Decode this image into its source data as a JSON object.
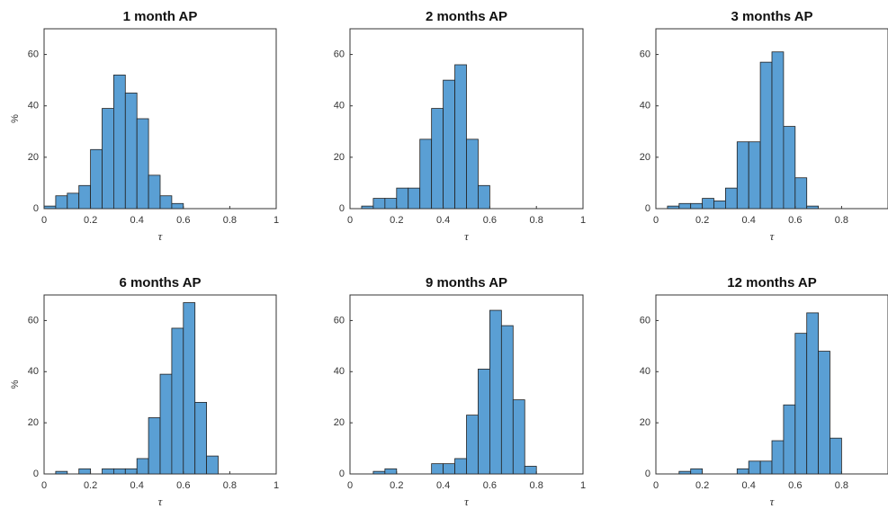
{
  "chart_data": [
    {
      "type": "histogram",
      "title": "1 month AP",
      "xlabel": "τ",
      "ylabel": "%",
      "bins": [
        0,
        0.05,
        0.1,
        0.15,
        0.2,
        0.25,
        0.3,
        0.35,
        0.4,
        0.45,
        0.5,
        0.55,
        0.6
      ],
      "values": [
        1,
        5,
        6,
        9,
        23,
        39,
        52,
        45,
        35,
        13,
        5,
        2
      ],
      "xlim": [
        0,
        1
      ],
      "ylim": [
        0,
        70
      ],
      "xticks": [
        0,
        0.2,
        0.4,
        0.6,
        0.8,
        1
      ],
      "yticks": [
        0,
        20,
        40,
        60
      ],
      "color": "#5a9fd4"
    },
    {
      "type": "histogram",
      "title": "2 months AP",
      "xlabel": "τ",
      "bins": [
        0.05,
        0.1,
        0.15,
        0.2,
        0.25,
        0.3,
        0.35,
        0.4,
        0.45,
        0.5,
        0.55,
        0.6
      ],
      "values": [
        1,
        4,
        4,
        8,
        8,
        27,
        39,
        50,
        56,
        27,
        9
      ],
      "xlim": [
        0,
        1
      ],
      "ylim": [
        0,
        70
      ],
      "xticks": [
        0,
        0.2,
        0.4,
        0.6,
        0.8,
        1
      ],
      "yticks": [
        0,
        20,
        40,
        60
      ],
      "color": "#5a9fd4"
    },
    {
      "type": "histogram",
      "title": "3 months AP",
      "xlabel": "τ",
      "bins": [
        0.05,
        0.1,
        0.15,
        0.2,
        0.25,
        0.3,
        0.35,
        0.4,
        0.45,
        0.5,
        0.55,
        0.6,
        0.65,
        0.7
      ],
      "values": [
        1,
        2,
        2,
        4,
        3,
        8,
        26,
        26,
        57,
        61,
        32,
        12,
        1
      ],
      "xlim": [
        0,
        1
      ],
      "ylim": [
        0,
        70
      ],
      "xticks": [
        0,
        0.2,
        0.4,
        0.6,
        0.8
      ],
      "yticks": [
        0,
        20,
        40,
        60
      ],
      "color": "#5a9fd4"
    },
    {
      "type": "histogram",
      "title": "6 months AP",
      "xlabel": "τ",
      "ylabel": "%",
      "bins": [
        0.05,
        0.1,
        0.15,
        0.2,
        0.25,
        0.3,
        0.35,
        0.4,
        0.45,
        0.5,
        0.55,
        0.6,
        0.65,
        0.7,
        0.75
      ],
      "values": [
        1,
        0,
        2,
        0,
        2,
        2,
        2,
        6,
        22,
        39,
        57,
        67,
        28,
        7
      ],
      "xlim": [
        0,
        1
      ],
      "ylim": [
        0,
        70
      ],
      "xticks": [
        0,
        0.2,
        0.4,
        0.6,
        0.8,
        1
      ],
      "yticks": [
        0,
        20,
        40,
        60
      ],
      "color": "#5a9fd4"
    },
    {
      "type": "histogram",
      "title": "9 months AP",
      "xlabel": "τ",
      "bins": [
        0.1,
        0.15,
        0.2,
        0.25,
        0.3,
        0.35,
        0.4,
        0.45,
        0.5,
        0.55,
        0.6,
        0.65,
        0.7,
        0.75,
        0.8
      ],
      "values": [
        1,
        2,
        0,
        0,
        0,
        4,
        4,
        6,
        23,
        41,
        64,
        58,
        29,
        3
      ],
      "xlim": [
        0,
        1
      ],
      "ylim": [
        0,
        70
      ],
      "xticks": [
        0,
        0.2,
        0.4,
        0.6,
        0.8,
        1
      ],
      "yticks": [
        0,
        20,
        40,
        60
      ],
      "color": "#5a9fd4"
    },
    {
      "type": "histogram",
      "title": "12 months AP",
      "xlabel": "τ",
      "bins": [
        0.1,
        0.15,
        0.2,
        0.25,
        0.3,
        0.35,
        0.4,
        0.45,
        0.5,
        0.55,
        0.6,
        0.65,
        0.7,
        0.75,
        0.8
      ],
      "values": [
        1,
        2,
        0,
        0,
        0,
        2,
        5,
        5,
        13,
        27,
        55,
        63,
        48,
        14
      ],
      "xlim": [
        0,
        1
      ],
      "ylim": [
        0,
        70
      ],
      "xticks": [
        0,
        0.2,
        0.4,
        0.6,
        0.8
      ],
      "yticks": [
        0,
        20,
        40,
        60
      ],
      "color": "#5a9fd4"
    }
  ]
}
